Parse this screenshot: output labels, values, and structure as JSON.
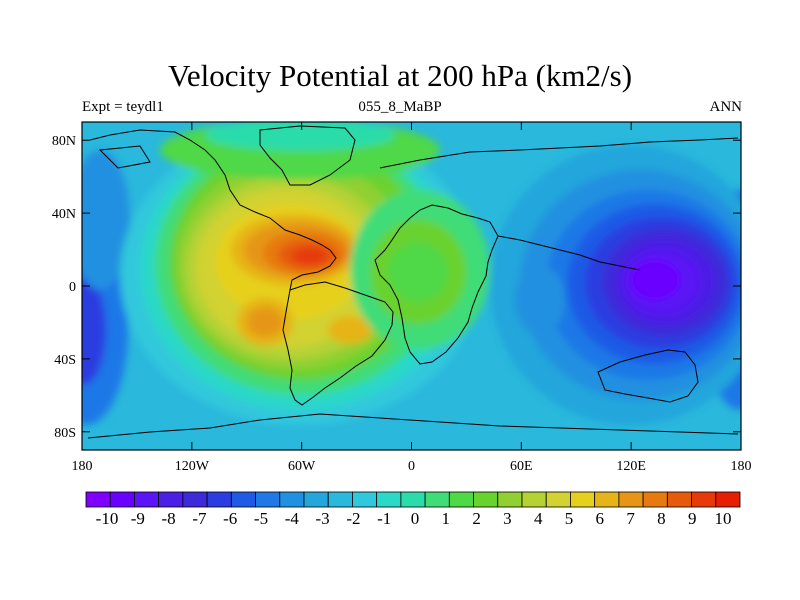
{
  "title": "Velocity Potential at 200 hPa (km2/s)",
  "subtitle_left": "Expt = teydl1",
  "subtitle_center": "055_8_MaBP",
  "subtitle_right": "ANN",
  "colors": {
    "levels": [
      "#7f00ff",
      "#6a00ff",
      "#5a14f5",
      "#4b1fe6",
      "#3d2ad8",
      "#2b3ce0",
      "#1f5ae6",
      "#1f78e6",
      "#2090e0",
      "#22a6dc",
      "#2ab8dc",
      "#30c8dc",
      "#2cd8c8",
      "#2adcaa",
      "#40dc78",
      "#50d846",
      "#6ad22e",
      "#90d032",
      "#b4d234",
      "#d2d232",
      "#e6d01e",
      "#e6b418",
      "#e69614",
      "#e67a10",
      "#e65a0c",
      "#e63a08",
      "#e61e04"
    ]
  },
  "chart_data": {
    "type": "filled-contour-map",
    "title": "Velocity Potential at 200 hPa (km2/s)",
    "experiment": "teydl1",
    "period": "055_8_MaBP",
    "season": "ANN",
    "x_ticks": [
      "180",
      "120W",
      "60W",
      "0",
      "60E",
      "120E",
      "180"
    ],
    "y_ticks": [
      "80N",
      "40N",
      "0",
      "40S",
      "80S"
    ],
    "xlim": [
      -180,
      180
    ],
    "ylim": [
      -90,
      90
    ],
    "colorbar_labels": [
      "-10",
      "-9",
      "-8",
      "-7",
      "-6",
      "-5",
      "-4",
      "-3",
      "-2",
      "-1",
      "0",
      "1",
      "2",
      "3",
      "4",
      "5",
      "6",
      "7",
      "8",
      "9",
      "10"
    ],
    "colorbar_range": [
      -10,
      10
    ],
    "contour_interval": 0.75,
    "features": [
      {
        "name": "max-center",
        "lon": -62,
        "lat": 15,
        "value": 9.5
      },
      {
        "name": "secondary-max",
        "lon": -88,
        "lat": -20,
        "value": 7.5
      },
      {
        "name": "atlantic-max",
        "lon": 10,
        "lat": 0,
        "value": 3.5
      },
      {
        "name": "min-center",
        "lon": 140,
        "lat": 5,
        "value": -9.5
      }
    ]
  }
}
